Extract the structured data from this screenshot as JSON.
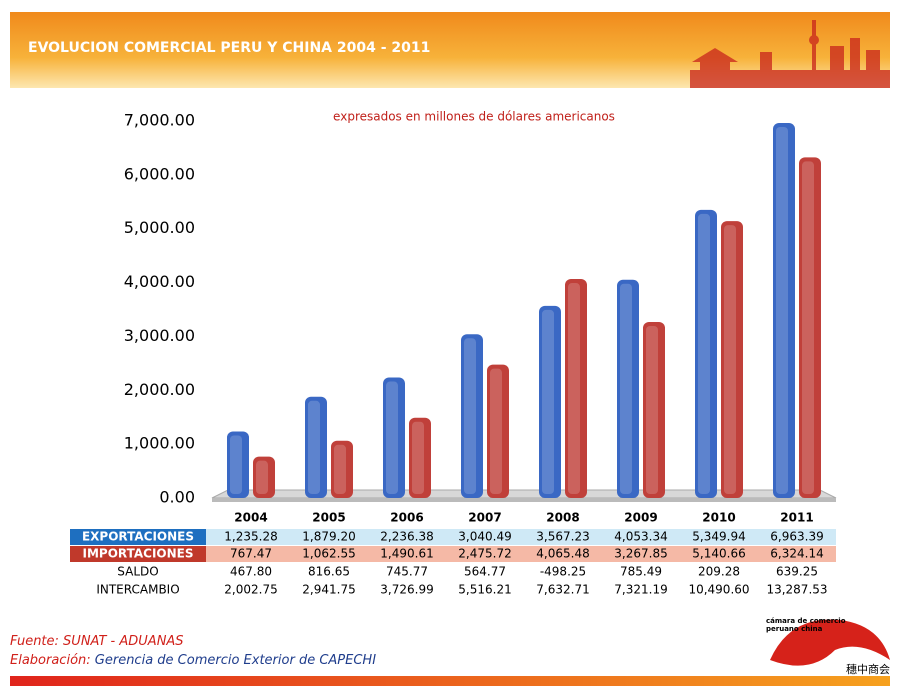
{
  "chart_data": {
    "type": "bar",
    "title": "EVOLUCION COMERCIAL PERU Y CHINA 2004 - 2011",
    "subtitle": "expresados en millones de dólares americanos",
    "categories": [
      "2004",
      "2005",
      "2006",
      "2007",
      "2008",
      "2009",
      "2010",
      "2011"
    ],
    "series": [
      {
        "name": "EXPORTACIONES",
        "color": "#3a68c4",
        "values": [
          1235.28,
          1879.2,
          2236.38,
          3040.49,
          3567.23,
          4053.34,
          5349.94,
          6963.39
        ],
        "value_labels": [
          "1,235.28",
          "1,879.20",
          "2,236.38",
          "3,040.49",
          "3,567.23",
          "4,053.34",
          "5,349.94",
          "6,963.39"
        ]
      },
      {
        "name": "IMPORTACIONES",
        "color": "#c0403a",
        "values": [
          767.47,
          1062.55,
          1490.61,
          2475.72,
          4065.48,
          3267.85,
          5140.66,
          6324.14
        ],
        "value_labels": [
          "767.47",
          "1,062.55",
          "1,490.61",
          "2,475.72",
          "4,065.48",
          "3,267.85",
          "5,140.66",
          "6,324.14"
        ]
      }
    ],
    "table_rows": [
      {
        "name": "SALDO",
        "values": [
          467.8,
          816.65,
          745.77,
          564.77,
          -498.25,
          785.49,
          209.28,
          639.25
        ],
        "value_labels": [
          "467.80",
          "816.65",
          "745.77",
          "564.77",
          "-498.25",
          "785.49",
          "209.28",
          "639.25"
        ]
      },
      {
        "name": "INTERCAMBIO",
        "values": [
          2002.75,
          2941.75,
          3726.99,
          5516.21,
          7632.71,
          7321.19,
          10490.6,
          13287.53
        ],
        "value_labels": [
          "2,002.75",
          "2,941.75",
          "3,726.99",
          "5,516.21",
          "7,632.71",
          "7,321.19",
          "10,490.60",
          "13,287.53"
        ]
      }
    ],
    "ylim": [
      0,
      7000
    ],
    "yticks": [
      {
        "value": 0,
        "label": "0.00"
      },
      {
        "value": 1000,
        "label": "1,000.00"
      },
      {
        "value": 2000,
        "label": "2,000.00"
      },
      {
        "value": 3000,
        "label": "3,000.00"
      },
      {
        "value": 4000,
        "label": "4,000.00"
      },
      {
        "value": 5000,
        "label": "5,000.00"
      },
      {
        "value": 6000,
        "label": "6,000.00"
      },
      {
        "value": 7000,
        "label": "7,000.00"
      }
    ]
  },
  "source": {
    "label": "Fuente:",
    "text": "SUNAT - ADUANAS"
  },
  "credit": {
    "label": "Elaboración:",
    "text": "Gerencia de Comercio Exterior de CAPECHI"
  },
  "logo": {
    "lines": [
      "cámara de comercio",
      "peruano china"
    ],
    "chinese": "穗中商会"
  }
}
